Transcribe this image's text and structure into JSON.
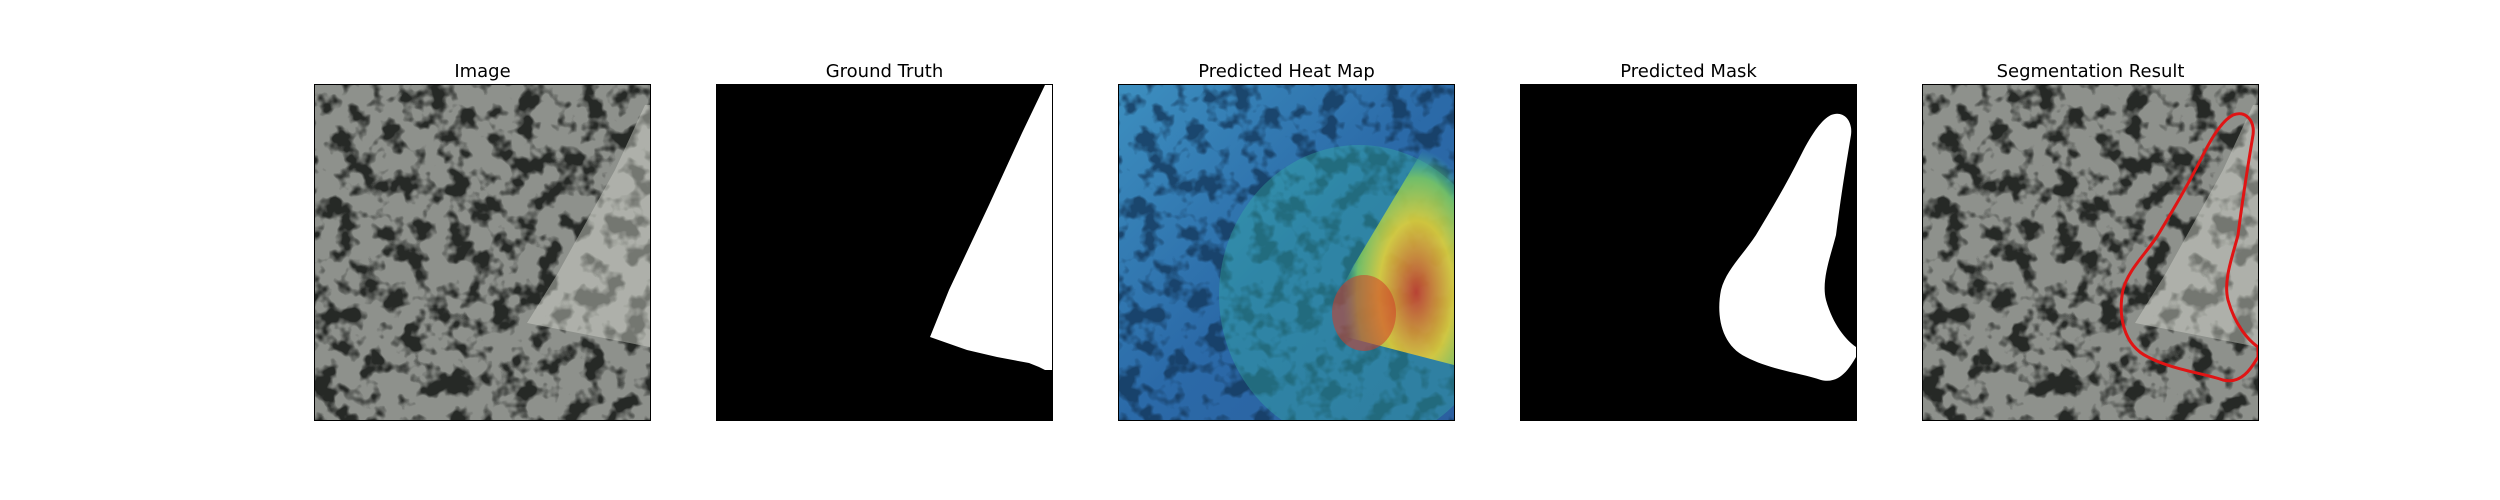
{
  "figure": {
    "panels": [
      {
        "id": "image",
        "title": "Image"
      },
      {
        "id": "ground-truth",
        "title": "Ground Truth"
      },
      {
        "id": "heatmap",
        "title": "Predicted Heat Map"
      },
      {
        "id": "predicted-mask",
        "title": "Predicted Mask"
      },
      {
        "id": "segmentation",
        "title": "Segmentation Result"
      }
    ]
  },
  "colors": {
    "texture_base": "#8e918c",
    "texture_dark": "#262826",
    "overlay_light": "#c2c3bc",
    "mask_fg": "#ffffff",
    "mask_bg": "#000000",
    "heat_low": "#2b5fa0",
    "heat_mid": "#37b9a2",
    "heat_high": "#ecd434",
    "heat_peak": "#d23c28",
    "contour": "#e01414"
  }
}
